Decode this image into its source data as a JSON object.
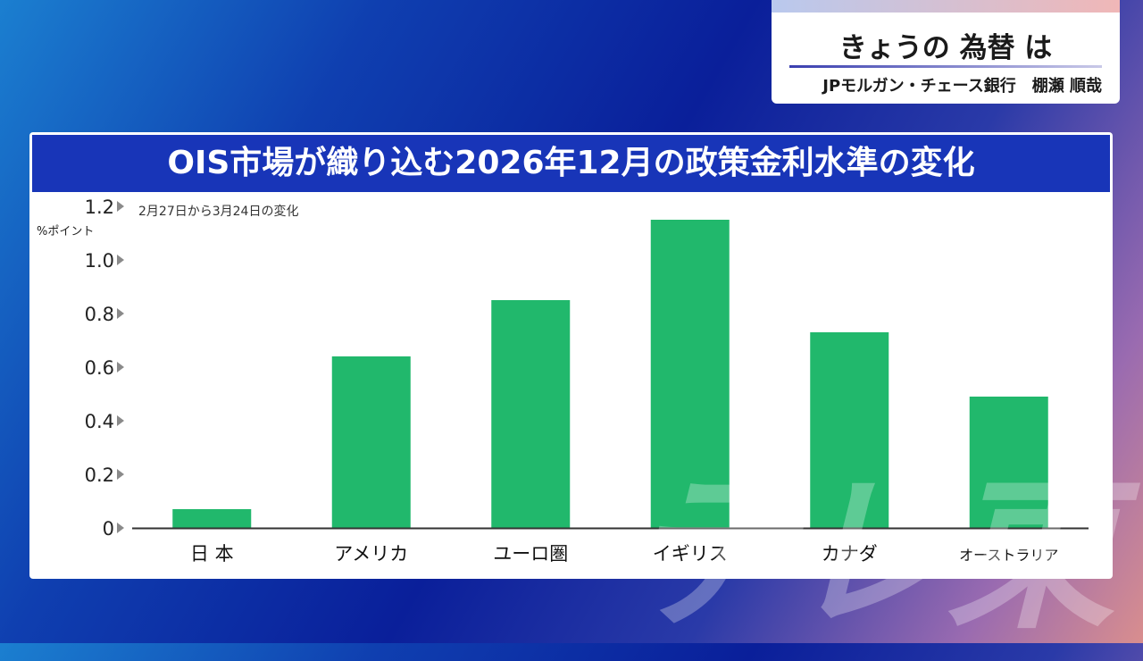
{
  "corner": {
    "title": "きょうの 為替 は",
    "subtitle": "JPモルガン・チェース銀行　棚瀬 順哉"
  },
  "watermark": "テレ東",
  "colors": {
    "bar": "#21b86c",
    "header": "#1835b8",
    "axis": "#333333",
    "tick_marker": "#8a8a8a"
  },
  "chart_data": {
    "type": "bar",
    "title": "OIS市場が織り込む2026年12月の政策金利水準の変化",
    "note": "2月27日から3月24日の変化",
    "ylabel": "%ポイント",
    "ylim": [
      0,
      1.2
    ],
    "yticks": [
      "0",
      "0.2",
      "0.4",
      "0.6",
      "0.8",
      "1.0",
      "1.2"
    ],
    "categories": [
      "日 本",
      "アメリカ",
      "ユーロ圏",
      "イギリス",
      "カナダ",
      "オーストラリア"
    ],
    "values": [
      0.07,
      0.64,
      0.85,
      1.15,
      0.73,
      0.49
    ],
    "grid": false,
    "legend": "none"
  }
}
